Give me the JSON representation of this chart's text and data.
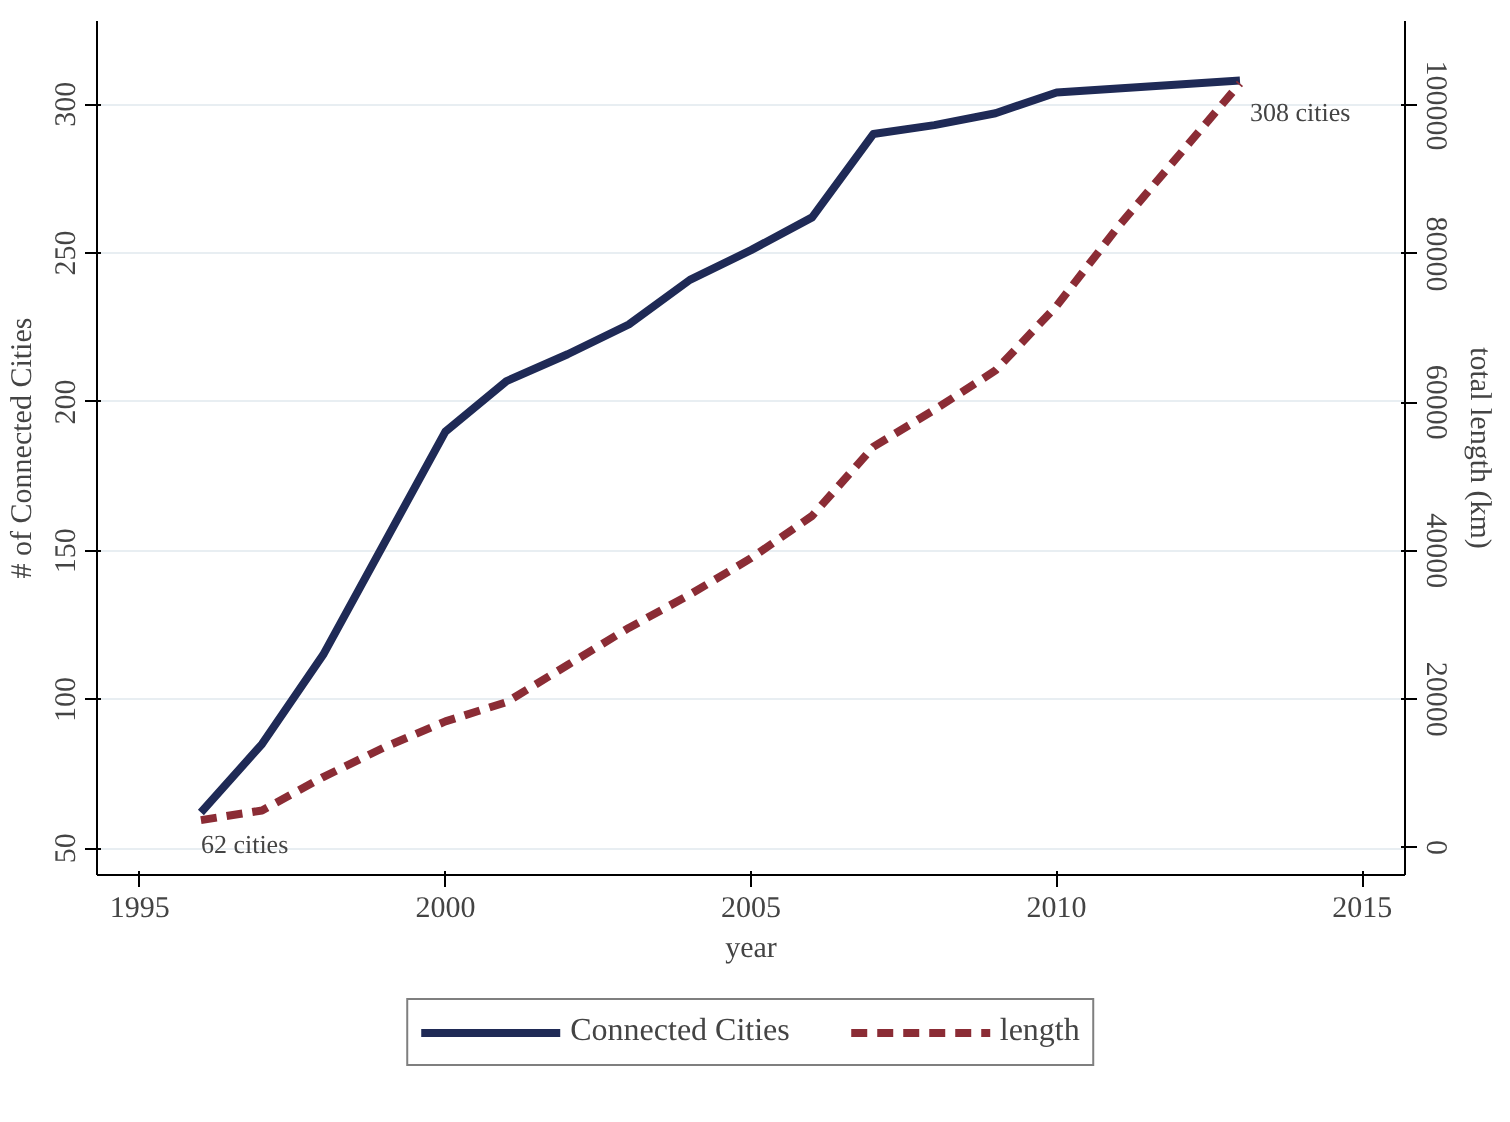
{
  "chart_data": {
    "type": "line",
    "xlabel": "year",
    "ylabel": "# of Connected Cities",
    "y2label": "total length (km)",
    "xlim": [
      1994.3,
      2015.7
    ],
    "xticks": [
      1995,
      2000,
      2005,
      2010,
      2015
    ],
    "ylim": [
      41,
      328
    ],
    "yticks": [
      50,
      100,
      150,
      200,
      250,
      300
    ],
    "y2lim": [
      -3700,
      111400
    ],
    "y2ticks": [
      0,
      20000,
      40000,
      60000,
      80000,
      100000
    ],
    "series": [
      {
        "name": "Connected Cities",
        "color": "#1f2a56",
        "line_style": "solid",
        "x": [
          1996,
          1997,
          1998,
          2000,
          2001,
          2002,
          2003,
          2004,
          2005,
          2006,
          2007,
          2008,
          2009,
          2010,
          2013
        ],
        "values": [
          62,
          85,
          115,
          190,
          207,
          216,
          226,
          241,
          251,
          262,
          290,
          293,
          297,
          304,
          308
        ]
      },
      {
        "name": "length",
        "color": "#8b2c35",
        "line_style": "dashed",
        "axis": "y2",
        "x": [
          1996,
          1997,
          1998,
          1999,
          2000,
          2001,
          2002,
          2003,
          2004,
          2005,
          2006,
          2007,
          2008,
          2009,
          2010,
          2011,
          2013
        ],
        "values": [
          3700,
          5000,
          9500,
          13500,
          17000,
          19600,
          24600,
          29600,
          34100,
          39000,
          44700,
          54000,
          59000,
          64300,
          73000,
          83600,
          103000
        ]
      }
    ],
    "annotations": [
      {
        "text": "62 cities",
        "x": 1996,
        "y": 62
      },
      {
        "text": "308 cities",
        "x": 2013,
        "y": 308
      }
    ],
    "grid": "y",
    "legend": "bottom",
    "marker": "none"
  }
}
